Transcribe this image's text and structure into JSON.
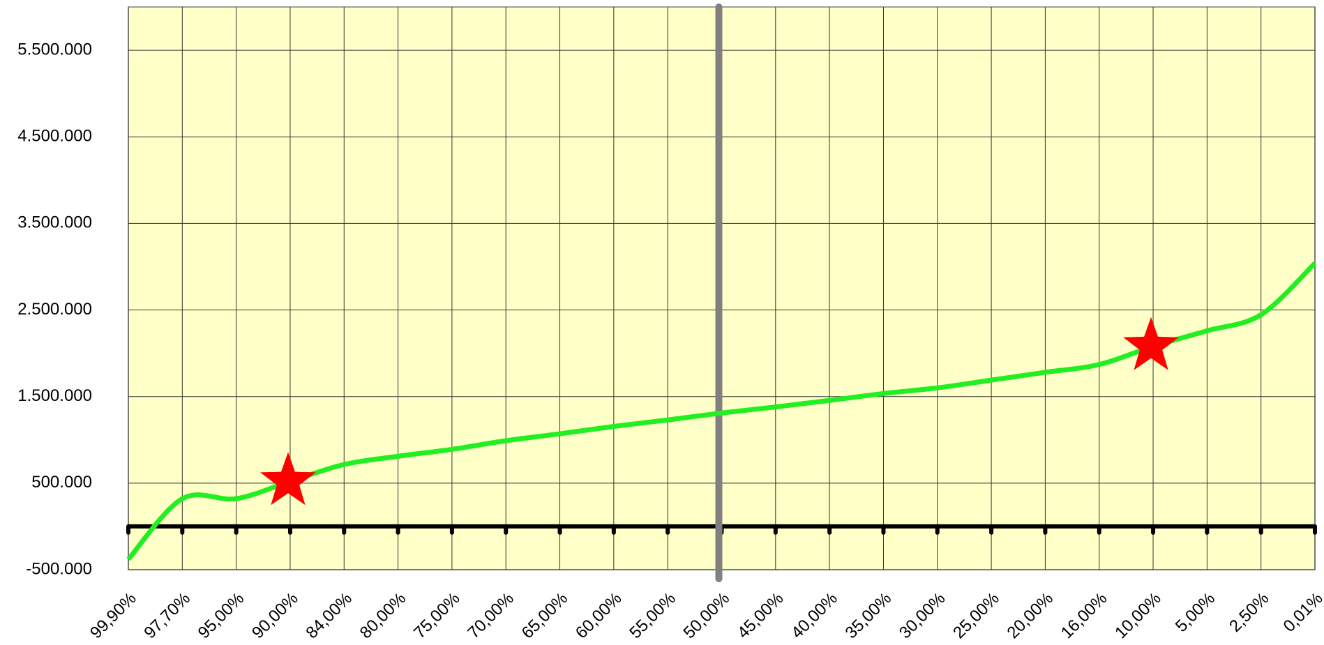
{
  "chart_data": {
    "type": "line",
    "categories": [
      "99,90%",
      "97,70%",
      "95,00%",
      "90,00%",
      "84,00%",
      "80,00%",
      "75,00%",
      "70,00%",
      "65,00%",
      "60,00%",
      "55,00%",
      "50,00%",
      "45,00%",
      "40,00%",
      "35,00%",
      "30,00%",
      "25,00%",
      "20,00%",
      "16,00%",
      "10,00%",
      "5,00%",
      "2,50%",
      "0,01%"
    ],
    "series": [
      {
        "color": "#22ee22",
        "values": [
          -380000,
          320000,
          320000,
          520000,
          715000,
          810000,
          890000,
          990000,
          1070000,
          1155000,
          1230000,
          1310000,
          1380000,
          1455000,
          1535000,
          1600000,
          1690000,
          1780000,
          1870000,
          2080000,
          2260000,
          2445000,
          3040000
        ]
      }
    ],
    "markers": {
      "indices": [
        3,
        19
      ],
      "color": "#ff0000"
    },
    "vline": {
      "index": 11,
      "color": "#808080"
    },
    "ylim": [
      -500000,
      6000000
    ],
    "yticks": [
      {
        "value": -500000,
        "label": "-500.000"
      },
      {
        "value": 500000,
        "label": "500.000"
      },
      {
        "value": 1500000,
        "label": "1.500.000"
      },
      {
        "value": 2500000,
        "label": "2.500.000"
      },
      {
        "value": 3500000,
        "label": "3.500.000"
      },
      {
        "value": 4500000,
        "label": "4.500.000"
      },
      {
        "value": 5500000,
        "label": "5.500.000"
      }
    ],
    "background": "#ffffc8",
    "grid": true
  }
}
